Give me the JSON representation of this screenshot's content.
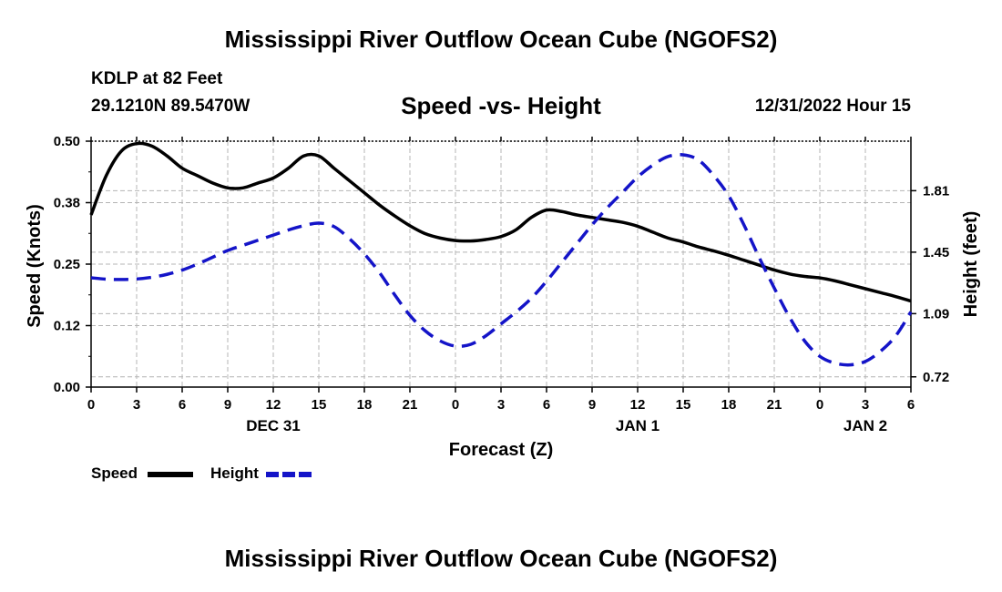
{
  "page": {
    "main_title": "Mississippi River Outflow Ocean Cube (NGOFS2)",
    "station_label": "KDLP at 82 Feet",
    "station_coords": "29.1210N  89.5470W",
    "chart_subtitle": "Speed -vs- Height",
    "datetime": "12/31/2022 Hour 15",
    "second_title": "Mississippi River Outflow Ocean Cube (NGOFS2)"
  },
  "colors": {
    "speed": "#000000",
    "height": "#1414c8",
    "grid": "#b4b4b4"
  },
  "chart_data": {
    "type": "line",
    "title": "Speed -vs- Height",
    "xlabel": "Forecast (Z)",
    "ylabel": "Speed (Knots)",
    "y2label": "Height (feet)",
    "xlim": [
      0,
      54
    ],
    "ylim": [
      0,
      0.5
    ],
    "y2lim": [
      0.66,
      2.1
    ],
    "xticks": [
      0,
      3,
      6,
      9,
      12,
      15,
      18,
      21,
      24,
      27,
      30,
      33,
      36,
      39,
      42,
      45,
      48,
      51,
      54
    ],
    "xtick_labels": [
      "0",
      "3",
      "6",
      "9",
      "12",
      "15",
      "18",
      "21",
      "0",
      "3",
      "6",
      "9",
      "12",
      "15",
      "18",
      "21",
      "0",
      "3",
      "6"
    ],
    "yticks": [
      0.0,
      0.125,
      0.25,
      0.375,
      0.5
    ],
    "ytick_labels": [
      "0.00",
      "0.12",
      "0.25",
      "0.38",
      "0.50"
    ],
    "y2ticks": [
      0.72,
      1.09,
      1.45,
      1.81
    ],
    "y2tick_labels": [
      "0.72",
      "1.09",
      "1.45",
      "1.81"
    ],
    "day_labels": [
      {
        "x": 12,
        "label": "DEC 31"
      },
      {
        "x": 36,
        "label": "JAN 1"
      },
      {
        "x": 51,
        "label": "JAN 2"
      }
    ],
    "grid": true,
    "legend_position": "bottom-left",
    "series": [
      {
        "name": "Speed",
        "axis": "left",
        "style": "solid",
        "x": [
          0,
          1,
          2,
          3,
          4,
          5,
          6,
          7,
          8,
          9,
          10,
          11,
          12,
          13,
          14,
          15,
          16,
          17,
          18,
          19,
          20,
          21,
          22,
          23,
          24,
          25,
          26,
          27,
          28,
          29,
          30,
          31,
          32,
          33,
          34,
          35,
          36,
          37,
          38,
          39,
          40,
          41,
          42,
          43,
          44,
          45,
          46,
          47,
          48,
          49,
          50,
          51,
          52,
          53,
          54
        ],
        "values": [
          0.35,
          0.43,
          0.48,
          0.495,
          0.49,
          0.47,
          0.445,
          0.43,
          0.415,
          0.405,
          0.405,
          0.415,
          0.425,
          0.445,
          0.47,
          0.47,
          0.445,
          0.42,
          0.395,
          0.37,
          0.348,
          0.328,
          0.312,
          0.303,
          0.298,
          0.297,
          0.3,
          0.306,
          0.32,
          0.345,
          0.36,
          0.357,
          0.35,
          0.345,
          0.34,
          0.335,
          0.327,
          0.315,
          0.303,
          0.295,
          0.285,
          0.277,
          0.268,
          0.258,
          0.248,
          0.238,
          0.23,
          0.225,
          0.222,
          0.216,
          0.208,
          0.2,
          0.192,
          0.184,
          0.175
        ]
      },
      {
        "name": "Height",
        "axis": "right",
        "style": "dashed",
        "x": [
          0,
          1,
          2,
          3,
          4,
          5,
          6,
          7,
          8,
          9,
          10,
          11,
          12,
          13,
          14,
          15,
          16,
          17,
          18,
          19,
          20,
          21,
          22,
          23,
          24,
          25,
          26,
          27,
          28,
          29,
          30,
          31,
          32,
          33,
          34,
          35,
          36,
          37,
          38,
          39,
          40,
          41,
          42,
          43,
          44,
          45,
          46,
          47,
          48,
          49,
          50,
          51,
          52,
          53,
          54
        ],
        "values": [
          1.3,
          1.292,
          1.29,
          1.293,
          1.303,
          1.32,
          1.345,
          1.38,
          1.42,
          1.46,
          1.49,
          1.52,
          1.55,
          1.58,
          1.605,
          1.62,
          1.6,
          1.53,
          1.44,
          1.33,
          1.2,
          1.08,
          0.99,
          0.93,
          0.9,
          0.91,
          0.96,
          1.03,
          1.1,
          1.18,
          1.28,
          1.39,
          1.5,
          1.61,
          1.71,
          1.8,
          1.89,
          1.96,
          2.01,
          2.02,
          1.99,
          1.9,
          1.78,
          1.61,
          1.42,
          1.24,
          1.07,
          0.93,
          0.84,
          0.8,
          0.79,
          0.81,
          0.87,
          0.96,
          1.1
        ]
      }
    ]
  }
}
